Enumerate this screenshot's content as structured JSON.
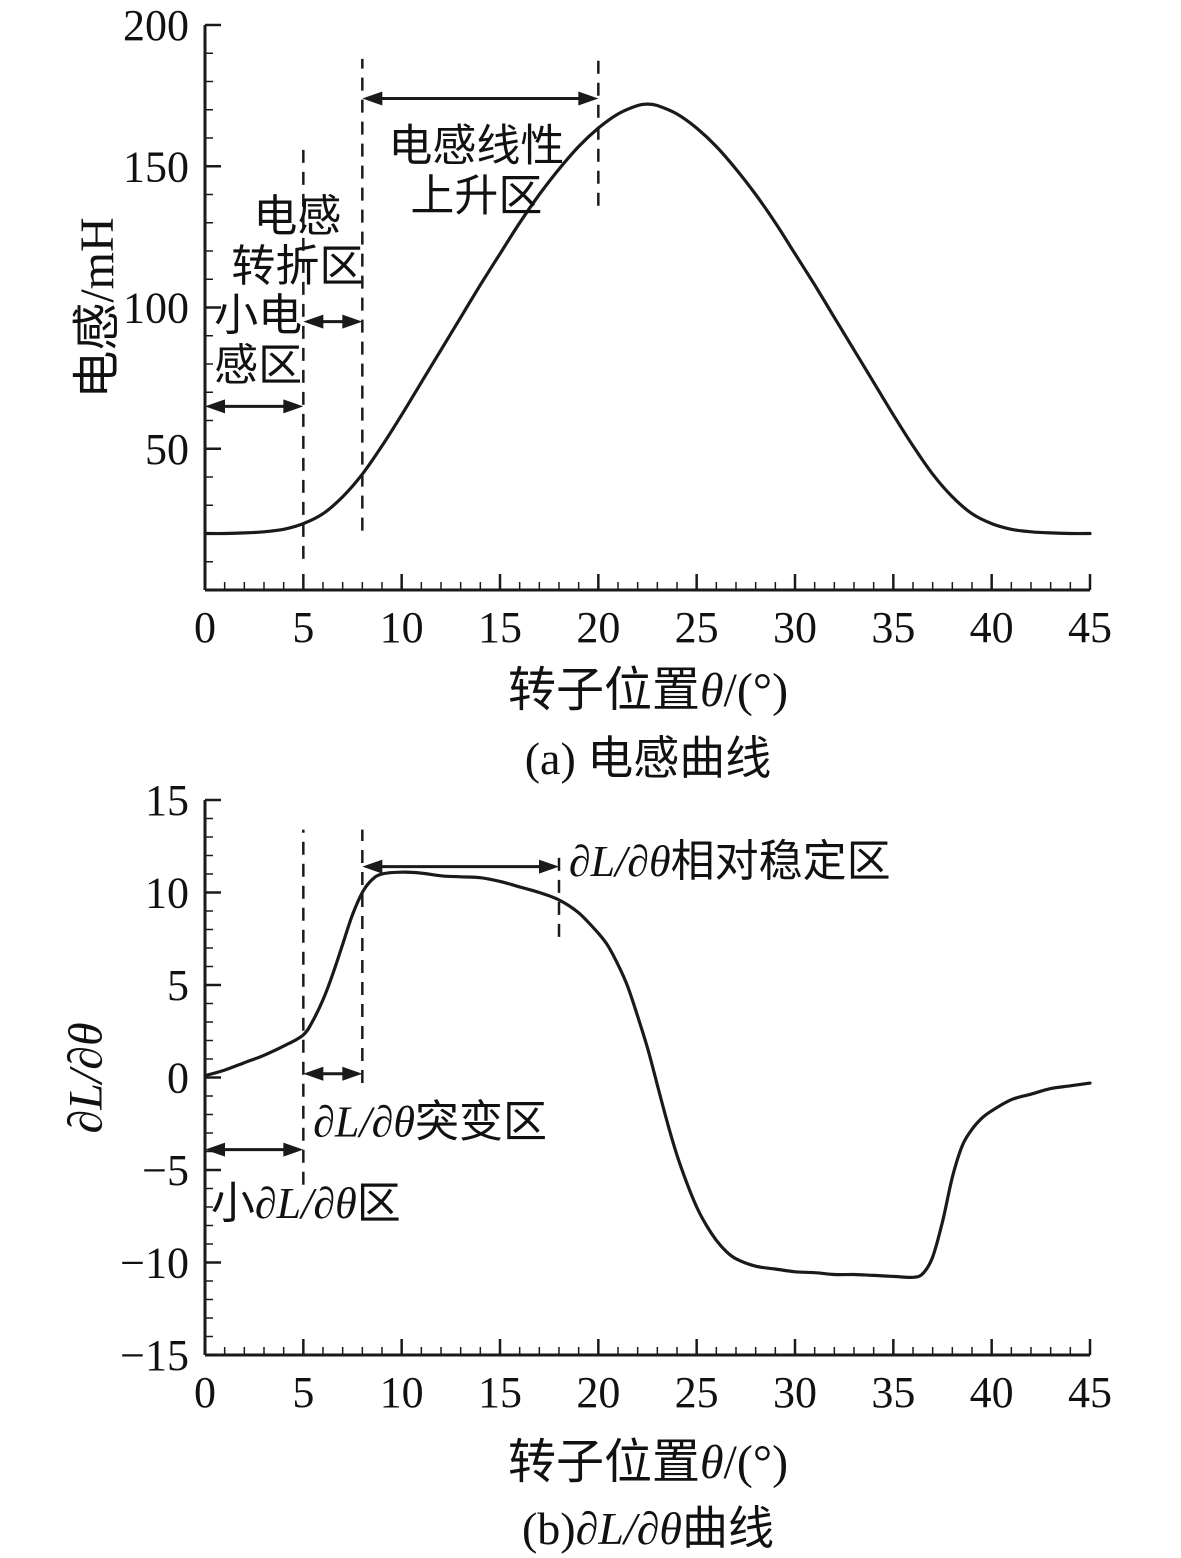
{
  "page": {
    "bg": "#ffffff",
    "ink": "#1a1a1a",
    "text_color": "#111111"
  },
  "chart_data": [
    {
      "type": "line",
      "id": "inductance",
      "caption": {
        "pre": "(a) ",
        "math": "",
        "post": "电感曲线"
      },
      "xlabel": {
        "pre": "转子位置",
        "sym": "θ",
        "post": "/(°)"
      },
      "ylabel": "电感/mH",
      "xlim": [
        0,
        45
      ],
      "ylim": [
        0,
        200
      ],
      "xticks": [
        0,
        5,
        10,
        15,
        20,
        25,
        30,
        35,
        40,
        45
      ],
      "yticks": [
        0,
        50,
        100,
        150,
        200
      ],
      "ytick_labels": [
        "",
        "50",
        "100",
        "150",
        "200"
      ],
      "x_minor_step": 1,
      "y_minor_step": 10,
      "grid": false,
      "series": [
        {
          "id": "inductance",
          "name": "电感曲线",
          "points": [
            [
              0,
              20
            ],
            [
              1,
              20
            ],
            [
              2,
              20.2
            ],
            [
              3,
              20.6
            ],
            [
              4,
              21.5
            ],
            [
              5,
              23.5
            ],
            [
              6,
              27
            ],
            [
              7,
              33
            ],
            [
              8,
              41
            ],
            [
              9,
              51
            ],
            [
              10,
              62
            ],
            [
              11,
              73.5
            ],
            [
              12,
              85
            ],
            [
              13,
              96.5
            ],
            [
              14,
              108
            ],
            [
              15,
              119
            ],
            [
              16,
              130
            ],
            [
              17,
              140
            ],
            [
              18,
              149
            ],
            [
              19,
              157
            ],
            [
              20,
              163.5
            ],
            [
              21,
              168.5
            ],
            [
              22,
              171.5
            ],
            [
              22.5,
              172
            ],
            [
              23,
              171.5
            ],
            [
              24,
              168.5
            ],
            [
              25,
              163.5
            ],
            [
              26,
              157
            ],
            [
              27,
              149
            ],
            [
              28,
              140
            ],
            [
              29,
              130
            ],
            [
              30,
              119
            ],
            [
              31,
              108
            ],
            [
              32,
              96.5
            ],
            [
              33,
              85
            ],
            [
              34,
              73.5
            ],
            [
              35,
              62
            ],
            [
              36,
              51
            ],
            [
              37,
              41
            ],
            [
              38,
              33
            ],
            [
              39,
              27
            ],
            [
              40,
              23.5
            ],
            [
              41,
              21.5
            ],
            [
              42,
              20.6
            ],
            [
              43,
              20.2
            ],
            [
              44,
              20
            ],
            [
              45,
              20
            ]
          ]
        }
      ],
      "guides": [
        {
          "x": 5,
          "y1": 11,
          "y2": 156
        },
        {
          "x": 8,
          "y1": 21,
          "y2": 188
        },
        {
          "x": 20,
          "y1": 136,
          "y2": 189
        }
      ],
      "arrows": [
        {
          "x1": 8,
          "x2": 20,
          "y": 174
        },
        {
          "x1": 5,
          "x2": 8,
          "y": 95
        },
        {
          "x1": 0,
          "x2": 5,
          "y": 65
        }
      ],
      "labels": [
        {
          "x": 13.8,
          "y": 152,
          "align": "center",
          "lines": [
            [
              {
                "t": "电感线性"
              }
            ],
            [
              {
                "t": "上升区"
              }
            ]
          ]
        },
        {
          "x": 4.7,
          "y": 127,
          "align": "center",
          "lines": [
            [
              {
                "t": "电感"
              }
            ],
            [
              {
                "t": "转折区"
              }
            ]
          ]
        },
        {
          "x": 2.7,
          "y": 92,
          "align": "center",
          "lines": [
            [
              {
                "t": "小电"
              }
            ],
            [
              {
                "t": "感区"
              }
            ]
          ]
        }
      ]
    },
    {
      "type": "line",
      "id": "dL-dtheta",
      "caption": {
        "pre": "(b)",
        "math": "∂L/∂θ",
        "post": "曲线"
      },
      "xlabel": {
        "pre": "转子位置",
        "sym": "θ",
        "post": "/(°)"
      },
      "ylabel": "∂L/∂θ",
      "xlim": [
        0,
        45
      ],
      "ylim": [
        -15,
        15
      ],
      "xticks": [
        0,
        5,
        10,
        15,
        20,
        25,
        30,
        35,
        40,
        45
      ],
      "yticks": [
        -15,
        -10,
        -5,
        0,
        5,
        10,
        15
      ],
      "ytick_labels": [
        "−15",
        "−10",
        "−5",
        "0",
        "5",
        "10",
        "15"
      ],
      "x_minor_step": 1,
      "y_minor_step": 1,
      "grid": false,
      "series": [
        {
          "id": "dL-dtheta",
          "name": "∂L/∂θ曲线",
          "points": [
            [
              0,
              0.1
            ],
            [
              1,
              0.4
            ],
            [
              2,
              0.8
            ],
            [
              3,
              1.2
            ],
            [
              4,
              1.7
            ],
            [
              5,
              2.3
            ],
            [
              5.5,
              3.1
            ],
            [
              6,
              4.2
            ],
            [
              6.5,
              5.6
            ],
            [
              7,
              7.2
            ],
            [
              7.5,
              8.8
            ],
            [
              8,
              10
            ],
            [
              8.5,
              10.7
            ],
            [
              9,
              11
            ],
            [
              10,
              11.1
            ],
            [
              11,
              11.05
            ],
            [
              12,
              10.9
            ],
            [
              13,
              10.85
            ],
            [
              14,
              10.8
            ],
            [
              15,
              10.6
            ],
            [
              16,
              10.3
            ],
            [
              17,
              10
            ],
            [
              18,
              9.6
            ],
            [
              19,
              8.9
            ],
            [
              20,
              7.8
            ],
            [
              20.5,
              7.1
            ],
            [
              21,
              6.1
            ],
            [
              21.5,
              4.9
            ],
            [
              22,
              3.3
            ],
            [
              22.5,
              1.6
            ],
            [
              23,
              -0.4
            ],
            [
              23.5,
              -2.4
            ],
            [
              24,
              -4.2
            ],
            [
              24.5,
              -5.7
            ],
            [
              25,
              -7
            ],
            [
              25.5,
              -8
            ],
            [
              26,
              -8.8
            ],
            [
              26.5,
              -9.4
            ],
            [
              27,
              -9.8
            ],
            [
              28,
              -10.2
            ],
            [
              29,
              -10.35
            ],
            [
              30,
              -10.5
            ],
            [
              31,
              -10.55
            ],
            [
              32,
              -10.65
            ],
            [
              33,
              -10.65
            ],
            [
              34,
              -10.7
            ],
            [
              35,
              -10.75
            ],
            [
              36,
              -10.8
            ],
            [
              36.5,
              -10.6
            ],
            [
              37,
              -9.7
            ],
            [
              37.5,
              -7.8
            ],
            [
              38,
              -5.4
            ],
            [
              38.5,
              -3.7
            ],
            [
              39,
              -2.8
            ],
            [
              39.5,
              -2.2
            ],
            [
              40,
              -1.8
            ],
            [
              41,
              -1.2
            ],
            [
              42,
              -0.9
            ],
            [
              43,
              -0.6
            ],
            [
              44,
              -0.45
            ],
            [
              45,
              -0.3
            ]
          ]
        }
      ],
      "guides": [
        {
          "x": 5,
          "y1": -5.8,
          "y2": 13.4
        },
        {
          "x": 8,
          "y1": -0.3,
          "y2": 13.4
        },
        {
          "x": 18,
          "y1": 7.6,
          "y2": 12.3
        }
      ],
      "arrows": [
        {
          "x1": 8,
          "x2": 18,
          "y": 11.4
        },
        {
          "x1": 5,
          "x2": 8,
          "y": 0.2
        },
        {
          "x1": 0,
          "x2": 5,
          "y": -3.9
        }
      ],
      "labels": [
        {
          "x": 18.5,
          "y": 10.9,
          "align": "left",
          "lines": [
            [
              {
                "t": "∂L/∂θ",
                "math": true
              },
              {
                "t": "相对稳定区"
              }
            ]
          ]
        },
        {
          "x": 5.5,
          "y": -3.2,
          "align": "left",
          "lines": [
            [
              {
                "t": "∂L/∂θ",
                "math": true
              },
              {
                "t": "突变区"
              }
            ]
          ]
        },
        {
          "x": 0.3,
          "y": -7.6,
          "align": "left",
          "lines": [
            [
              {
                "t": "小"
              },
              {
                "t": "∂L/∂θ",
                "math": true
              },
              {
                "t": "区"
              }
            ]
          ]
        }
      ]
    }
  ]
}
